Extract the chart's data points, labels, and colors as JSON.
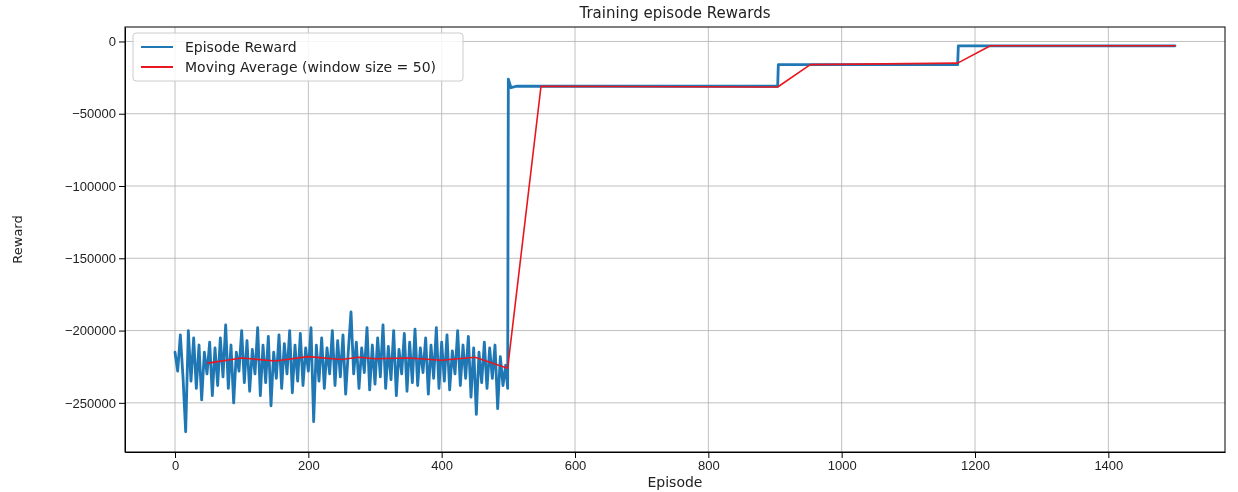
{
  "chart_data": {
    "type": "line",
    "title": "Training episode Rewards",
    "xlabel": "Episode",
    "ylabel": "Reward",
    "xlim": [
      -75,
      1575
    ],
    "xticks": [
      0,
      200,
      400,
      600,
      800,
      1000,
      1200,
      1400
    ],
    "ylim": [
      -284000,
      10000
    ],
    "yticks": [
      -250000,
      -200000,
      -150000,
      -100000,
      -50000,
      0
    ],
    "grid": true,
    "legend": "top left",
    "series": [
      {
        "name": "Episode Reward",
        "color": "#1f77b4",
        "x": [
          0,
          4,
          8,
          12,
          16,
          20,
          24,
          28,
          32,
          36,
          40,
          44,
          48,
          52,
          56,
          60,
          64,
          68,
          72,
          76,
          80,
          84,
          88,
          92,
          96,
          100,
          104,
          108,
          112,
          116,
          120,
          124,
          128,
          132,
          136,
          140,
          144,
          148,
          152,
          156,
          160,
          164,
          168,
          172,
          176,
          180,
          184,
          188,
          192,
          196,
          200,
          204,
          208,
          212,
          216,
          220,
          224,
          228,
          232,
          236,
          240,
          244,
          248,
          252,
          256,
          260,
          264,
          268,
          272,
          276,
          280,
          284,
          288,
          292,
          296,
          300,
          304,
          308,
          312,
          316,
          320,
          324,
          328,
          332,
          336,
          340,
          344,
          348,
          352,
          356,
          360,
          364,
          368,
          372,
          376,
          380,
          384,
          388,
          392,
          396,
          400,
          404,
          408,
          412,
          416,
          420,
          424,
          428,
          432,
          436,
          440,
          444,
          448,
          452,
          456,
          460,
          464,
          468,
          472,
          476,
          480,
          484,
          488,
          492,
          496,
          499,
          500,
          504,
          512,
          904,
          905,
          1174,
          1175,
          1500
        ],
        "values": [
          -215000,
          -228000,
          -203000,
          -232000,
          -270000,
          -200000,
          -235000,
          -205000,
          -240000,
          -210000,
          -248000,
          -215000,
          -230000,
          -208000,
          -245000,
          -212000,
          -238000,
          -205000,
          -232000,
          -196000,
          -240000,
          -210000,
          -250000,
          -215000,
          -228000,
          -200000,
          -236000,
          -207000,
          -242000,
          -213000,
          -230000,
          -198000,
          -245000,
          -210000,
          -236000,
          -204000,
          -252000,
          -215000,
          -233000,
          -203000,
          -240000,
          -209000,
          -230000,
          -200000,
          -243000,
          -210000,
          -235000,
          -202000,
          -238000,
          -212000,
          -228000,
          -198000,
          -263000,
          -210000,
          -235000,
          -205000,
          -240000,
          -212000,
          -230000,
          -200000,
          -238000,
          -207000,
          -232000,
          -203000,
          -244000,
          -214000,
          -187000,
          -230000,
          -208000,
          -240000,
          -212000,
          -229000,
          -198000,
          -241000,
          -210000,
          -237000,
          -205000,
          -232000,
          -196000,
          -240000,
          -211000,
          -234000,
          -200000,
          -245000,
          -213000,
          -230000,
          -202000,
          -242000,
          -208000,
          -236000,
          -199000,
          -238000,
          -212000,
          -229000,
          -205000,
          -244000,
          -210000,
          -233000,
          -198000,
          -240000,
          -208000,
          -235000,
          -203000,
          -241000,
          -214000,
          -230000,
          -200000,
          -238000,
          -210000,
          -233000,
          -204000,
          -246000,
          -212000,
          -258000,
          -215000,
          -236000,
          -208000,
          -240000,
          -212000,
          -233000,
          -210000,
          -254000,
          -218000,
          -238000,
          -224000,
          -240000,
          -26000,
          -32000,
          -31000,
          -31000,
          -16000,
          -16000,
          -3000,
          -3000
        ]
      },
      {
        "name": "Moving Average (window size = 50)",
        "color": "#e8171f",
        "x": [
          49,
          100,
          150,
          200,
          250,
          275,
          300,
          350,
          400,
          450,
          499,
          549,
          904,
          953,
          1174,
          1223,
          1500
        ],
        "values": [
          -222500,
          -219000,
          -221000,
          -218000,
          -220000,
          -218500,
          -219500,
          -219000,
          -220500,
          -218500,
          -226000,
          -31000,
          -31500,
          -16000,
          -15000,
          -3000,
          -3000
        ]
      }
    ]
  }
}
